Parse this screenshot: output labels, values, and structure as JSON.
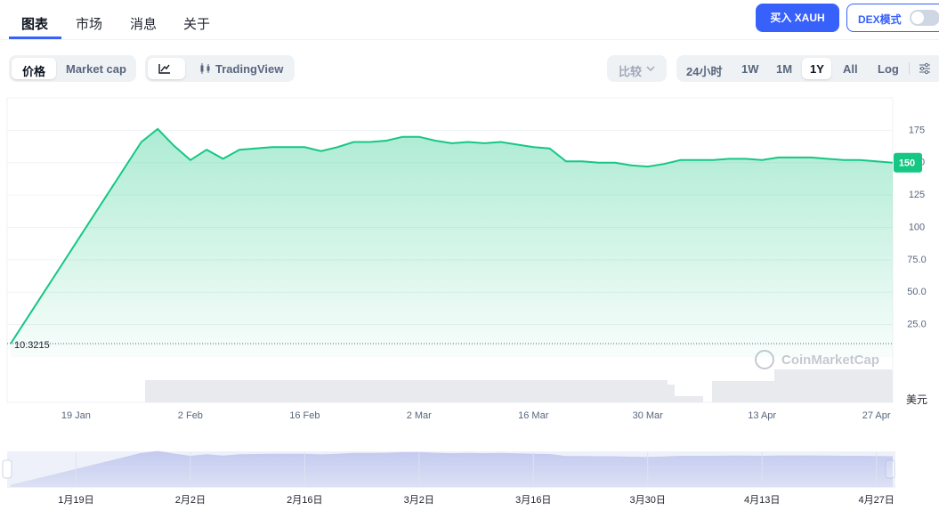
{
  "tabs": [
    "图表",
    "市场",
    "消息",
    "关于"
  ],
  "buy_button": "买入 XAUH",
  "dex_mode": "DEX模式",
  "price_toggle": [
    "价格",
    "Market cap"
  ],
  "view_toggle": "TradingView",
  "compare": "比较",
  "ranges": [
    "24小时",
    "1W",
    "1M",
    "1Y",
    "All",
    "Log"
  ],
  "watermark": "CoinMarketCap",
  "navigator_labels": [
    "1月19日",
    "2月2日",
    "2月16日",
    "3月2日",
    "3月16日",
    "3月30日",
    "4月13日",
    "4月27日"
  ],
  "chart_data": {
    "type": "line",
    "color": "#16c784",
    "categories": [
      null,
      null,
      null,
      null,
      "19 Jan",
      null,
      null,
      null,
      null,
      null,
      null,
      "2 Feb",
      null,
      null,
      null,
      null,
      null,
      null,
      "16 Feb",
      null,
      null,
      null,
      null,
      null,
      null,
      "2 Mar",
      null,
      null,
      null,
      null,
      null,
      null,
      "16 Mar",
      null,
      null,
      null,
      null,
      null,
      null,
      "30 Mar",
      null,
      null,
      null,
      null,
      null,
      null,
      "13 Apr",
      null,
      null,
      null,
      null,
      null,
      null,
      "27 Apr",
      null
    ],
    "values": [
      10.3215,
      29.8,
      49.3,
      68.7,
      88.2,
      107.7,
      127.1,
      146.6,
      166,
      176,
      163,
      152,
      160,
      153,
      160,
      161,
      162,
      162,
      162,
      159,
      162,
      166,
      166,
      167,
      170,
      170,
      167,
      165,
      166,
      165,
      166,
      164,
      162,
      161,
      151,
      151,
      150,
      150,
      148,
      147,
      149,
      152,
      152,
      152,
      153,
      153,
      152,
      154,
      154,
      154,
      153,
      152,
      152,
      151,
      150
    ],
    "current_price": 150,
    "currency": "美元",
    "ylim": [
      0,
      200
    ],
    "yticks": [
      {
        "value": 25,
        "label": "25.0"
      },
      {
        "value": 50,
        "label": "50.0"
      },
      {
        "value": 75,
        "label": "75.0"
      },
      100,
      125,
      150,
      175
    ],
    "grid": true
  }
}
